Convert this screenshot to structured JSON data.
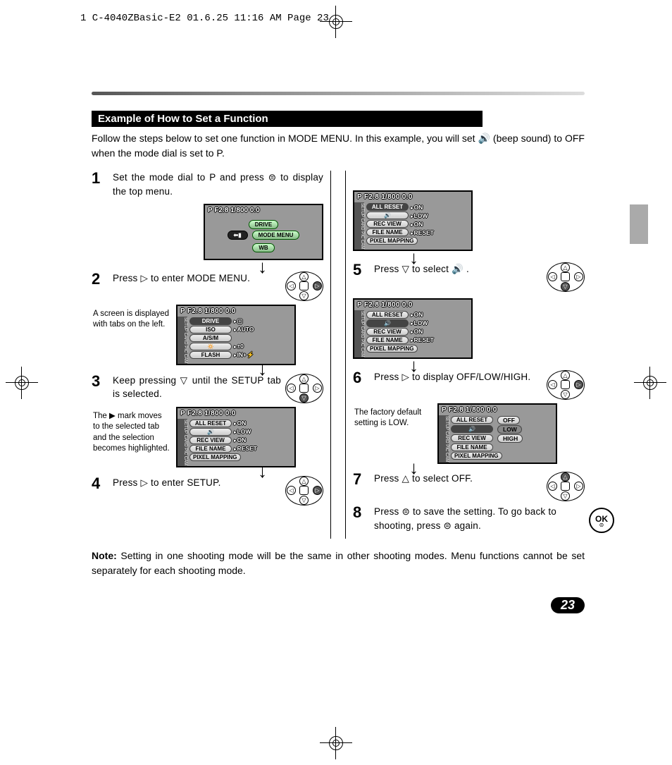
{
  "header_line": "1 C-4040ZBasic-E2  01.6.25 11:16 AM  Page 23",
  "section_title": "Example of How to Set a Function",
  "intro": "Follow the steps below to set one function in MODE MENU. In this example, you will set 🔊 (beep sound) to OFF when the mode dial is set to P.",
  "lcd_header": "P F2.8 1/800   0.0",
  "lcd_tabs": "SETUP CARD PIC CAM",
  "top_menu": {
    "up": "DRIVE",
    "left": "⬅▮",
    "right": "MODE MENU",
    "down": "WB"
  },
  "screen2": {
    "rows": [
      {
        "k": "DRIVE",
        "v": "▢",
        "sel": true
      },
      {
        "k": "ISO",
        "v": "AUTO"
      },
      {
        "k": "A/S/M",
        "v": ""
      },
      {
        "k": "🔅",
        "v": "±0"
      },
      {
        "k": "FLASH",
        "v": "IN+⚡"
      }
    ]
  },
  "screen_setup_sound": {
    "rows": [
      {
        "k": "ALL RESET",
        "v": "ON"
      },
      {
        "k": "🔊",
        "v": "LOW"
      },
      {
        "k": "REC VIEW",
        "v": "ON"
      },
      {
        "k": "FILE NAME",
        "v": "RESET"
      },
      {
        "k": "PIXEL MAPPING",
        "v": ""
      }
    ]
  },
  "screen_setup_sound_sel5": {
    "rows": [
      {
        "k": "ALL RESET",
        "v": "ON"
      },
      {
        "k": "🔊",
        "v": "LOW",
        "sel": true
      },
      {
        "k": "REC VIEW",
        "v": "ON"
      },
      {
        "k": "FILE NAME",
        "v": "RESET"
      },
      {
        "k": "PIXEL MAPPING",
        "v": ""
      }
    ]
  },
  "screen6": {
    "rows": [
      {
        "k": "ALL RESET",
        "v": ""
      },
      {
        "k": "🔊",
        "v": "",
        "sel": true
      },
      {
        "k": "REC VIEW",
        "v": ""
      },
      {
        "k": "FILE NAME",
        "v": ""
      },
      {
        "k": "PIXEL MAPPING",
        "v": ""
      }
    ],
    "options": [
      "OFF",
      "LOW",
      "HIGH"
    ],
    "sel_option": "LOW"
  },
  "steps": {
    "s1": "Set the mode dial to P and press ⊜ to display the top menu.",
    "s2": "Press ▷ to enter MODE MENU.",
    "s2_note": "A screen is displayed with tabs on the left.",
    "s3": "Keep pressing ▽ until the SETUP tab is selected.",
    "s3_note": "The ▶ mark moves to the selected tab and the selection becomes highlighted.",
    "s4": "Press ▷ to enter SETUP.",
    "s5": "Press ▽ to select 🔊 .",
    "s6": "Press ▷ to display OFF/LOW/HIGH.",
    "s6_note": "The factory default setting is LOW.",
    "s7": "Press △ to select OFF.",
    "s8": "Press ⊜ to save the setting. To go back to shooting, press ⊜ again."
  },
  "ok_label": "OK",
  "footnote": "Note: Setting in one shooting mode will be the same in other shooting modes. Menu functions cannot be set separately for each shooting mode.",
  "page_number": "23",
  "colors": {
    "section_bg": "#000000",
    "section_fg": "#ffffff",
    "lcd_bg": "#999999",
    "pill_green_top": "#ccffcc",
    "pill_green_bot": "#88bb88",
    "side_tab": "#aaaaaa"
  }
}
